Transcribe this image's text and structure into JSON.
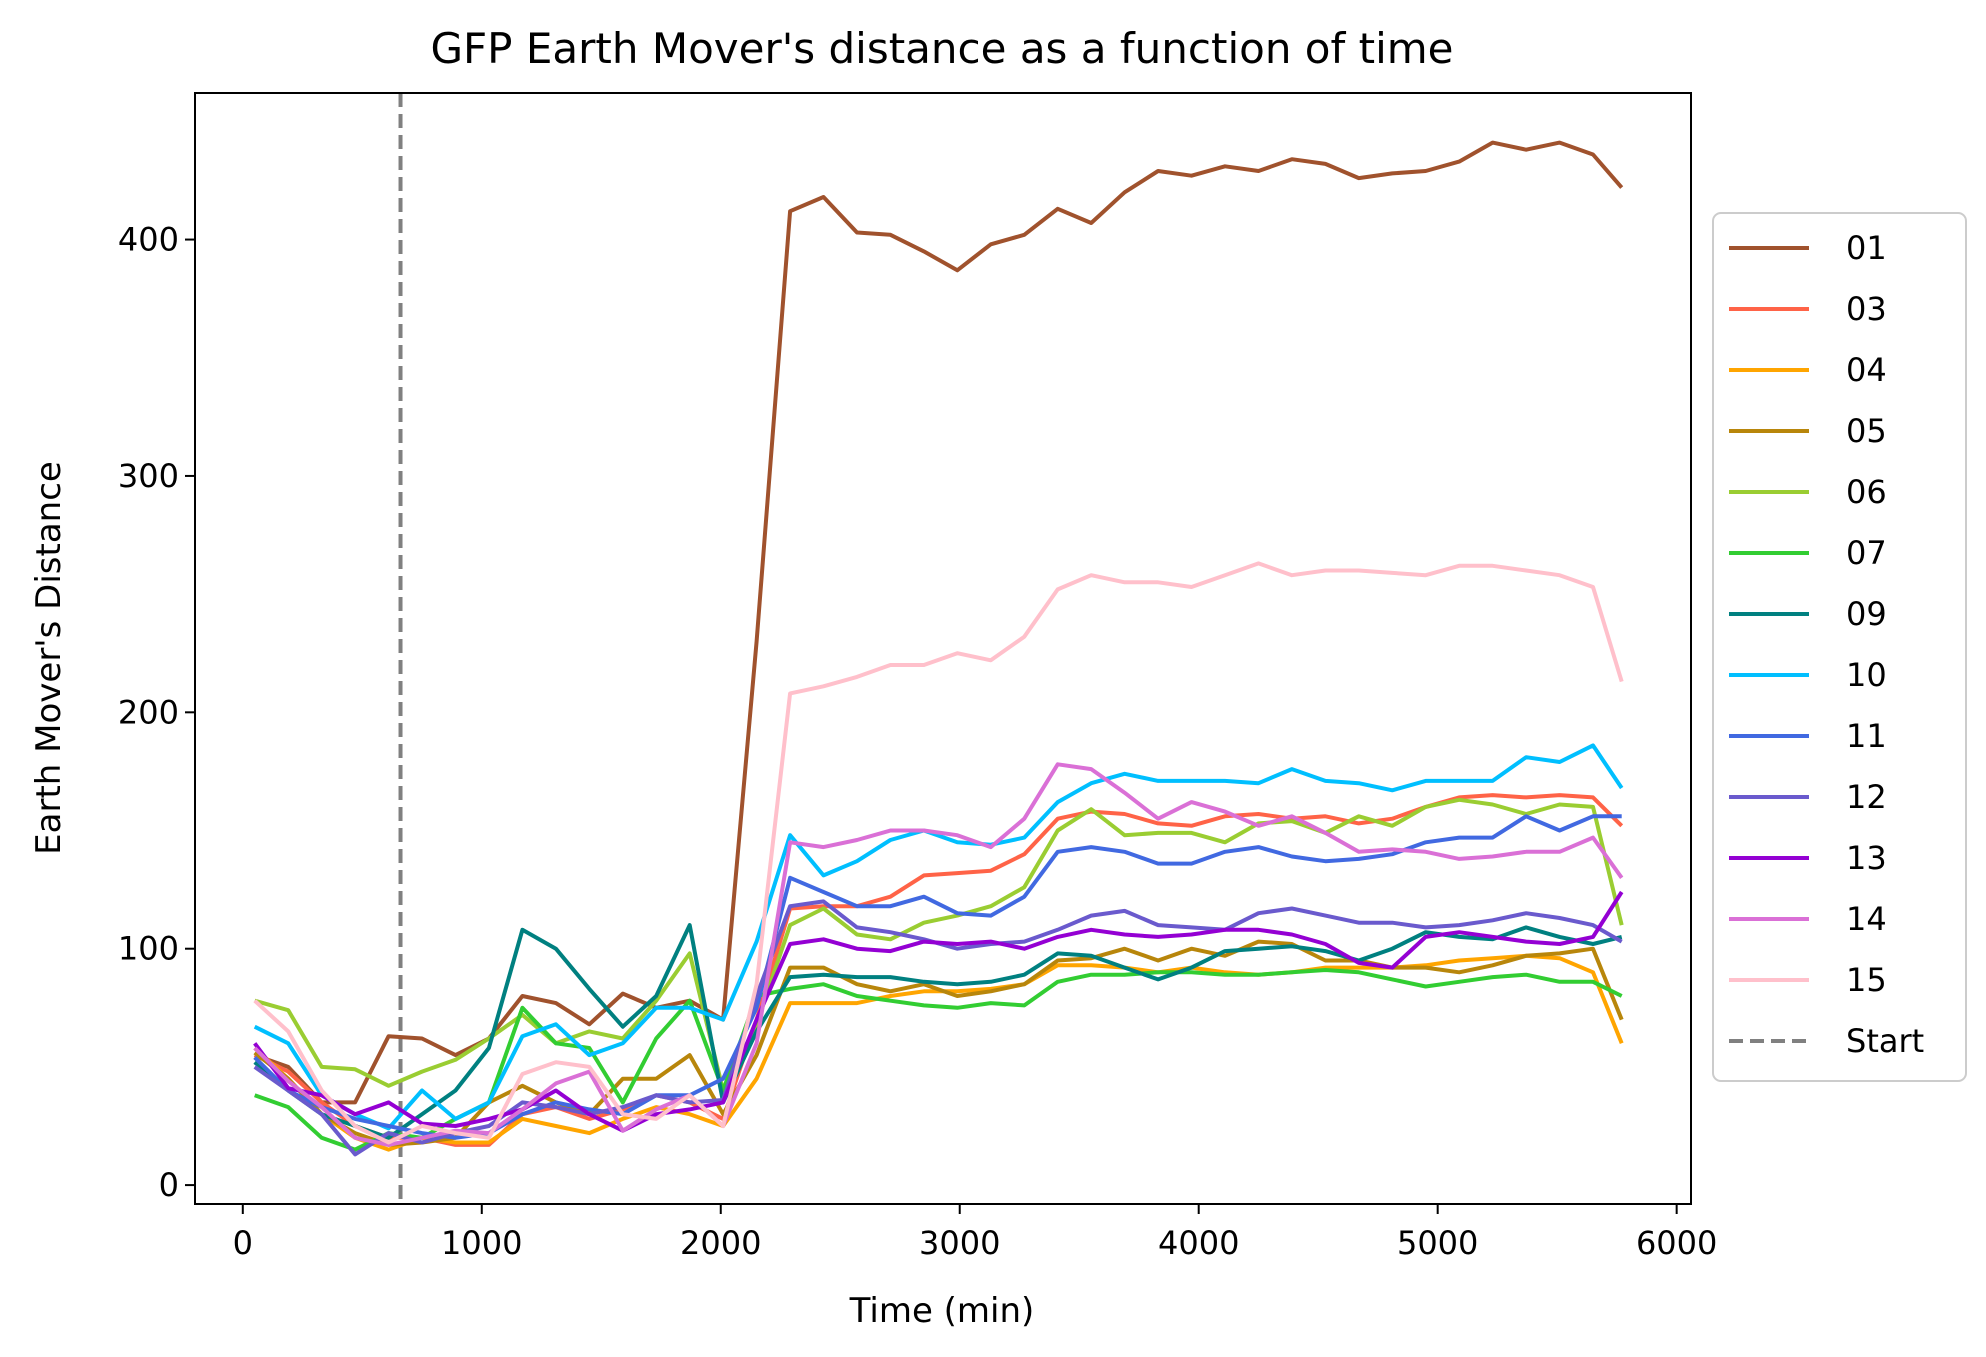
{
  "chart_data": {
    "type": "line",
    "title": "GFP Earth Mover's distance as a function of time",
    "xlabel": "Time (min)",
    "ylabel": "Earth Mover's Distance",
    "xlim": [
      -200,
      6060
    ],
    "ylim": [
      -8,
      462
    ],
    "xticks": [
      0,
      1000,
      2000,
      3000,
      4000,
      5000,
      6000
    ],
    "yticks": [
      0,
      100,
      200,
      300,
      400
    ],
    "x": [
      50,
      190,
      330,
      470,
      610,
      750,
      890,
      1030,
      1170,
      1310,
      1450,
      1590,
      1730,
      1870,
      2010,
      2150,
      2290,
      2430,
      2570,
      2710,
      2850,
      2990,
      3130,
      3270,
      3410,
      3550,
      3690,
      3830,
      3970,
      4110,
      4250,
      4390,
      4530,
      4670,
      4810,
      4950,
      5090,
      5230,
      5370,
      5510,
      5650,
      5770
    ],
    "legend_position": "center-right outside",
    "start_marker": {
      "x": 660,
      "label": "Start",
      "color": "#808080"
    },
    "series": [
      {
        "name": "01",
        "color": "#a0522d",
        "values": [
          55,
          50,
          35,
          35,
          63,
          62,
          55,
          62,
          80,
          77,
          68,
          81,
          75,
          78,
          70,
          230,
          412,
          418,
          403,
          402,
          395,
          387,
          398,
          402,
          413,
          407,
          420,
          429,
          427,
          431,
          429,
          434,
          432,
          426,
          428,
          429,
          433,
          441,
          438,
          441,
          436,
          422
        ]
      },
      {
        "name": "03",
        "color": "#ff6347",
        "values": [
          55,
          48,
          35,
          25,
          20,
          20,
          17,
          17,
          30,
          33,
          28,
          32,
          38,
          35,
          28,
          70,
          117,
          118,
          118,
          122,
          131,
          132,
          133,
          140,
          155,
          158,
          157,
          153,
          152,
          156,
          157,
          155,
          156,
          153,
          155,
          160,
          164,
          165,
          164,
          165,
          164,
          152
        ]
      },
      {
        "name": "04",
        "color": "#ffa500",
        "values": [
          58,
          45,
          30,
          20,
          15,
          20,
          18,
          18,
          28,
          25,
          22,
          28,
          33,
          30,
          25,
          45,
          77,
          77,
          77,
          80,
          82,
          82,
          83,
          85,
          93,
          93,
          92,
          90,
          92,
          90,
          89,
          90,
          92,
          92,
          92,
          93,
          95,
          96,
          97,
          96,
          90,
          60
        ]
      },
      {
        "name": "05",
        "color": "#b8860b",
        "values": [
          56,
          45,
          30,
          22,
          17,
          18,
          20,
          35,
          42,
          35,
          30,
          45,
          45,
          55,
          30,
          55,
          92,
          92,
          85,
          82,
          85,
          80,
          82,
          85,
          95,
          96,
          100,
          95,
          100,
          97,
          103,
          102,
          95,
          95,
          92,
          92,
          90,
          93,
          97,
          98,
          100,
          70
        ]
      },
      {
        "name": "06",
        "color": "#9acd32",
        "values": [
          78,
          74,
          50,
          49,
          42,
          48,
          53,
          62,
          72,
          60,
          65,
          62,
          78,
          98,
          40,
          68,
          110,
          117,
          106,
          104,
          111,
          114,
          118,
          126,
          150,
          159,
          148,
          149,
          149,
          145,
          153,
          154,
          149,
          156,
          152,
          160,
          163,
          161,
          157,
          161,
          160,
          110
        ]
      },
      {
        "name": "07",
        "color": "#32cd32",
        "values": [
          38,
          33,
          20,
          15,
          22,
          20,
          28,
          35,
          75,
          60,
          58,
          35,
          62,
          78,
          40,
          80,
          83,
          85,
          80,
          78,
          76,
          75,
          77,
          76,
          86,
          89,
          89,
          90,
          90,
          89,
          89,
          90,
          91,
          90,
          87,
          84,
          86,
          88,
          89,
          86,
          86,
          80
        ]
      },
      {
        "name": "09",
        "color": "#008080",
        "values": [
          52,
          40,
          30,
          25,
          20,
          30,
          40,
          58,
          108,
          100,
          83,
          67,
          80,
          110,
          35,
          65,
          88,
          89,
          88,
          88,
          86,
          85,
          86,
          89,
          98,
          97,
          92,
          87,
          92,
          99,
          100,
          101,
          99,
          95,
          100,
          107,
          105,
          104,
          109,
          105,
          102,
          105
        ]
      },
      {
        "name": "10",
        "color": "#00bfff",
        "values": [
          67,
          60,
          38,
          30,
          24,
          40,
          28,
          35,
          63,
          68,
          55,
          60,
          75,
          75,
          70,
          103,
          148,
          131,
          137,
          146,
          150,
          145,
          144,
          147,
          162,
          170,
          174,
          171,
          171,
          171,
          170,
          176,
          171,
          170,
          167,
          171,
          171,
          171,
          181,
          179,
          186,
          168
        ]
      },
      {
        "name": "11",
        "color": "#4169e1",
        "values": [
          54,
          40,
          33,
          28,
          25,
          22,
          20,
          22,
          30,
          35,
          32,
          30,
          38,
          38,
          45,
          75,
          130,
          124,
          118,
          118,
          122,
          115,
          114,
          122,
          141,
          143,
          141,
          136,
          136,
          141,
          143,
          139,
          137,
          138,
          140,
          145,
          147,
          147,
          156,
          150,
          156,
          156
        ]
      },
      {
        "name": "12",
        "color": "#6a5acd",
        "values": [
          50,
          40,
          30,
          13,
          22,
          18,
          22,
          25,
          35,
          33,
          30,
          33,
          38,
          35,
          36,
          80,
          118,
          120,
          109,
          107,
          104,
          100,
          102,
          103,
          108,
          114,
          116,
          110,
          109,
          108,
          115,
          117,
          114,
          111,
          111,
          109,
          110,
          112,
          115,
          113,
          110,
          103
        ]
      },
      {
        "name": "13",
        "color": "#9400d3",
        "values": [
          60,
          41,
          38,
          30,
          35,
          26,
          25,
          28,
          32,
          40,
          30,
          23,
          30,
          32,
          35,
          70,
          102,
          104,
          100,
          99,
          103,
          102,
          103,
          100,
          105,
          108,
          106,
          105,
          106,
          108,
          108,
          106,
          102,
          94,
          92,
          105,
          107,
          105,
          103,
          102,
          105,
          124
        ]
      },
      {
        "name": "14",
        "color": "#da70d6",
        "values": [
          58,
          44,
          33,
          20,
          17,
          20,
          23,
          22,
          32,
          43,
          48,
          23,
          32,
          38,
          25,
          60,
          145,
          143,
          146,
          150,
          150,
          148,
          143,
          155,
          178,
          176,
          166,
          155,
          162,
          158,
          152,
          156,
          149,
          141,
          142,
          141,
          138,
          139,
          141,
          141,
          147,
          130
        ]
      },
      {
        "name": "15",
        "color": "#ffc0cb",
        "values": [
          78,
          65,
          40,
          25,
          18,
          25,
          22,
          20,
          47,
          52,
          50,
          30,
          28,
          38,
          25,
          85,
          208,
          211,
          215,
          220,
          220,
          225,
          222,
          232,
          252,
          258,
          255,
          255,
          253,
          258,
          263,
          258,
          260,
          260,
          259,
          258,
          262,
          262,
          260,
          258,
          253,
          213
        ]
      }
    ]
  }
}
